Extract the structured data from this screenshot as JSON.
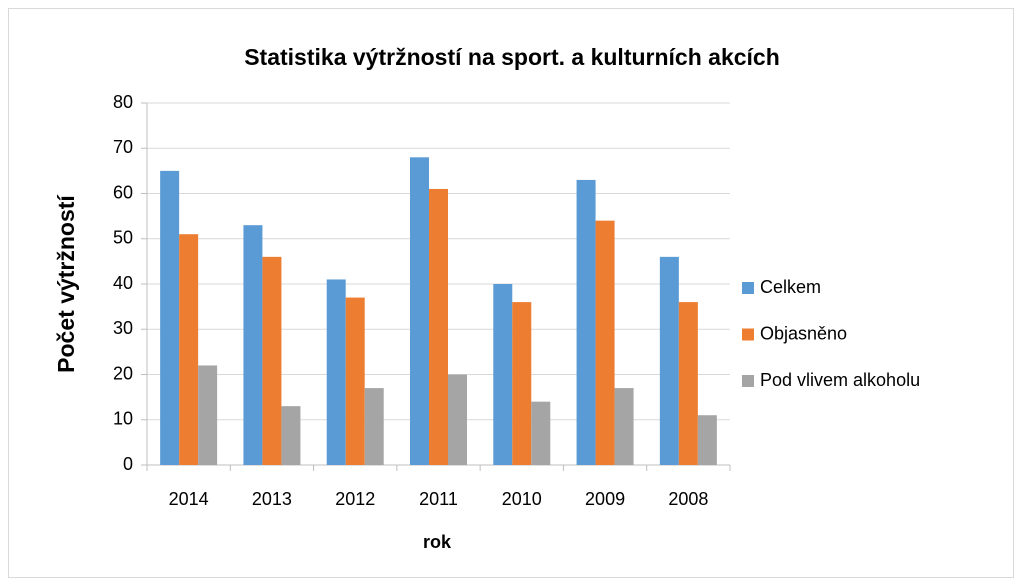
{
  "chart_data": {
    "type": "bar",
    "title": "Statistika výtržností na sport. a kulturních akcích",
    "x_label": "rok",
    "y_label": "Počet výtržností",
    "categories": [
      "2014",
      "2013",
      "2012",
      "2011",
      "2010",
      "2009",
      "2008"
    ],
    "series": [
      {
        "name": "Celkem",
        "color": "#5b9bd5",
        "values": [
          65,
          53,
          41,
          68,
          40,
          63,
          46
        ]
      },
      {
        "name": "Objasněno",
        "color": "#ed7d31",
        "values": [
          51,
          46,
          37,
          61,
          36,
          54,
          36
        ]
      },
      {
        "name": "Pod vlivem alkoholu",
        "color": "#a5a5a5",
        "values": [
          22,
          13,
          17,
          20,
          14,
          17,
          11
        ]
      }
    ],
    "ylim": [
      0,
      80
    ],
    "yticks": [
      0,
      10,
      20,
      30,
      40,
      50,
      60,
      70,
      80
    ],
    "grid": true,
    "legend": "right"
  }
}
